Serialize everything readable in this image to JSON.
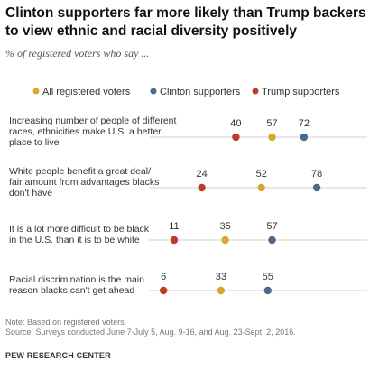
{
  "header": {
    "title": "Clinton supporters far more likely than Trump backers to view ethnic and racial diversity positively",
    "subtitle": "% of registered voters who say ..."
  },
  "colors": {
    "all_registered_voters": "#d9a533",
    "clinton_supporters": "#486a8c",
    "trump_supporters": "#c0392b",
    "gridline": "#d0d0d0"
  },
  "chart_data": {
    "type": "scatter",
    "title": "Clinton supporters far more likely than Trump backers to view ethnic and racial diversity positively",
    "subtitle": "% of registered voters who say ...",
    "xlim": [
      0,
      100
    ],
    "grid": true,
    "legend_position": "top",
    "categories": [
      [
        "Increasing number of people of different",
        "races, ethnicities make U.S. a better",
        "place to live"
      ],
      [
        "White people benefit a great deal/",
        "fair amount from advantages blacks",
        "don't have"
      ],
      [
        "It is a lot more difficult to be black",
        "in the U.S. than it is to be white"
      ],
      [
        "Racial discrimination is the main",
        "reason blacks can't get ahead"
      ]
    ],
    "series": [
      {
        "name": "All registered voters",
        "values": [
          57,
          52,
          35,
          33
        ]
      },
      {
        "name": "Clinton supporters",
        "values": [
          72,
          78,
          57,
          55
        ]
      },
      {
        "name": "Trump supporters",
        "values": [
          40,
          24,
          11,
          6
        ]
      }
    ]
  },
  "footer": {
    "note": "Note: Based on registered voters.",
    "source": "Source: Surveys conducted June 7-July 5, Aug. 9-16, and Aug. 23-Sept. 2, 2016.",
    "brand": "PEW RESEARCH CENTER"
  }
}
